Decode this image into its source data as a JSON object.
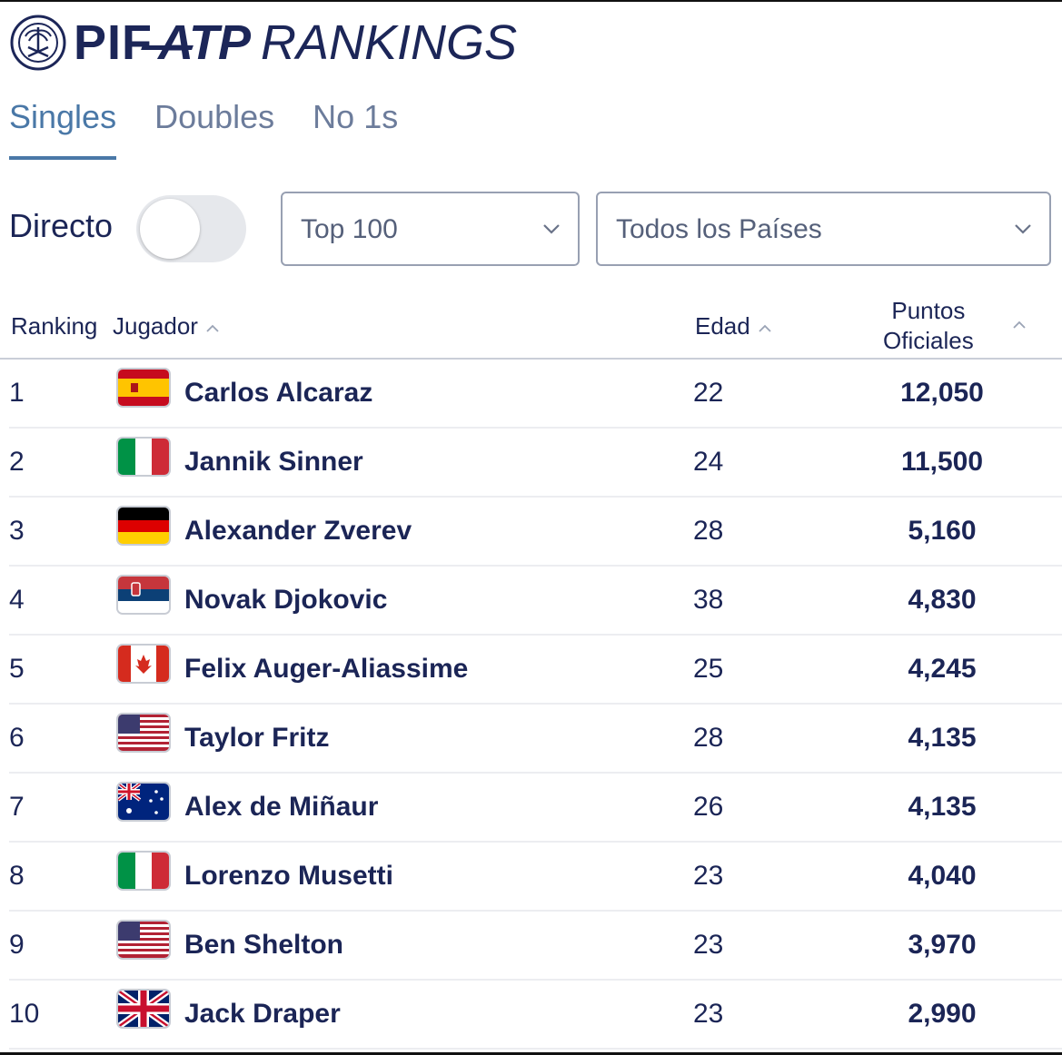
{
  "brand": {
    "prefix": "PIF",
    "atp": "ATP",
    "title": "RANKINGS"
  },
  "tabs": [
    {
      "label": "Singles",
      "active": true
    },
    {
      "label": "Doubles",
      "active": false
    },
    {
      "label": "No 1s",
      "active": false
    }
  ],
  "filters": {
    "live_label": "Directo",
    "live_enabled": false,
    "range_select": "Top 100",
    "country_select": "Todos los Países"
  },
  "table": {
    "headers": {
      "ranking": "Ranking",
      "player": "Jugador",
      "age": "Edad",
      "points_line1": "Puntos",
      "points_line2": "Oficiales"
    },
    "rows": [
      {
        "rank": "1",
        "name": "Carlos Alcaraz",
        "country": "spain",
        "age": "22",
        "points": "12,050"
      },
      {
        "rank": "2",
        "name": "Jannik Sinner",
        "country": "italy",
        "age": "24",
        "points": "11,500"
      },
      {
        "rank": "3",
        "name": "Alexander Zverev",
        "country": "germany",
        "age": "28",
        "points": "5,160"
      },
      {
        "rank": "4",
        "name": "Novak Djokovic",
        "country": "serbia",
        "age": "38",
        "points": "4,830"
      },
      {
        "rank": "5",
        "name": "Felix Auger-Aliassime",
        "country": "canada",
        "age": "25",
        "points": "4,245"
      },
      {
        "rank": "6",
        "name": "Taylor Fritz",
        "country": "usa",
        "age": "28",
        "points": "4,135"
      },
      {
        "rank": "7",
        "name": "Alex de Miñaur",
        "country": "australia",
        "age": "26",
        "points": "4,135"
      },
      {
        "rank": "8",
        "name": "Lorenzo Musetti",
        "country": "italy",
        "age": "23",
        "points": "4,040"
      },
      {
        "rank": "9",
        "name": "Ben Shelton",
        "country": "usa",
        "age": "23",
        "points": "3,970"
      },
      {
        "rank": "10",
        "name": "Jack Draper",
        "country": "uk",
        "age": "23",
        "points": "2,990"
      }
    ]
  },
  "colors": {
    "navy": "#1b2556",
    "accent": "#4a78a7",
    "muted": "#6c7c9b"
  }
}
